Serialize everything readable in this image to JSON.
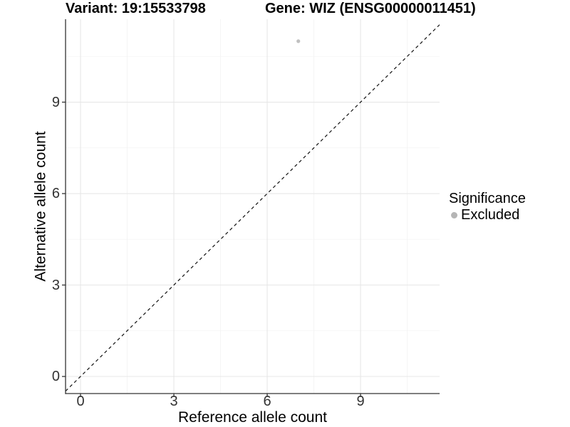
{
  "titles": {
    "variant": "Variant: 19:15533798",
    "gene": "Gene: WIZ (ENSG00000011451)"
  },
  "axes": {
    "x": {
      "label": "Reference allele count"
    },
    "y": {
      "label": "Alternative allele count"
    }
  },
  "legend": {
    "title": "Significance",
    "items": [
      {
        "label": "Excluded",
        "color": "#b5b5b5"
      }
    ]
  },
  "chart_data": {
    "type": "scatter",
    "title": "Variant: 19:15533798 | Gene: WIZ (ENSG00000011451)",
    "xlabel": "Reference allele count",
    "ylabel": "Alternative allele count",
    "xlim": [
      -0.48,
      11.54
    ],
    "ylim": [
      -0.56,
      11.72
    ],
    "x_ticks": [
      0,
      3,
      6,
      9
    ],
    "y_ticks": [
      0,
      3,
      6,
      9
    ],
    "x_minor_gridlines": [
      1.5,
      4.5,
      7.5,
      10.5
    ],
    "y_minor_gridlines": [
      1.5,
      4.5,
      7.5,
      10.5
    ],
    "grid": true,
    "legend_position": "right",
    "series": [
      {
        "name": "Excluded",
        "color": "#c0c0c0",
        "points": [
          {
            "x": 7,
            "y": 11
          }
        ]
      }
    ],
    "reference_line": {
      "kind": "identity",
      "slope": 1,
      "intercept": 0,
      "style": "dashed",
      "color": "#111111"
    }
  },
  "colors": {
    "background": "#ffffff",
    "grid_major": "#e7e7e7",
    "grid_minor": "#f3f3f3",
    "axis_line": "#333333",
    "tick_label": "#333333",
    "point": "#c0c0c0",
    "legend_dot": "#b5b5b5"
  }
}
